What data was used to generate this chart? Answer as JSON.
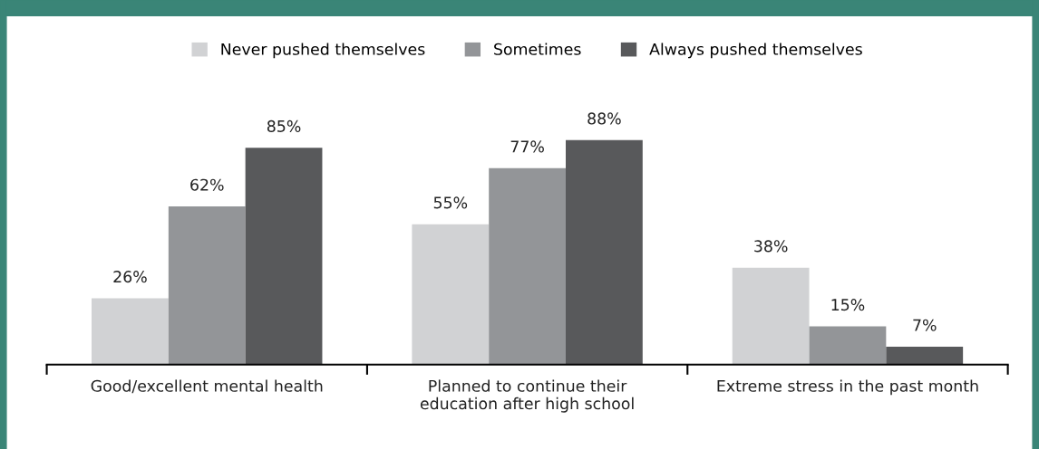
{
  "chart_data": {
    "type": "bar",
    "categories": [
      "Good/excellent mental health",
      "Planned to continue their\neducation after high school",
      "Extreme stress in the past month"
    ],
    "series": [
      {
        "name": "Never pushed themselves",
        "color": "#d1d2d4",
        "values": [
          26,
          55,
          38
        ],
        "value_labels": [
          "26%",
          "55%",
          "38%"
        ]
      },
      {
        "name": "Sometimes",
        "color": "#939598",
        "values": [
          62,
          77,
          15
        ],
        "value_labels": [
          "62%",
          "77%",
          "15%"
        ]
      },
      {
        "name": "Always pushed themselves",
        "color": "#58595b",
        "values": [
          85,
          88,
          7
        ],
        "value_labels": [
          "85%",
          "88%",
          "7%"
        ]
      }
    ],
    "legend": "top",
    "grid": false
  }
}
